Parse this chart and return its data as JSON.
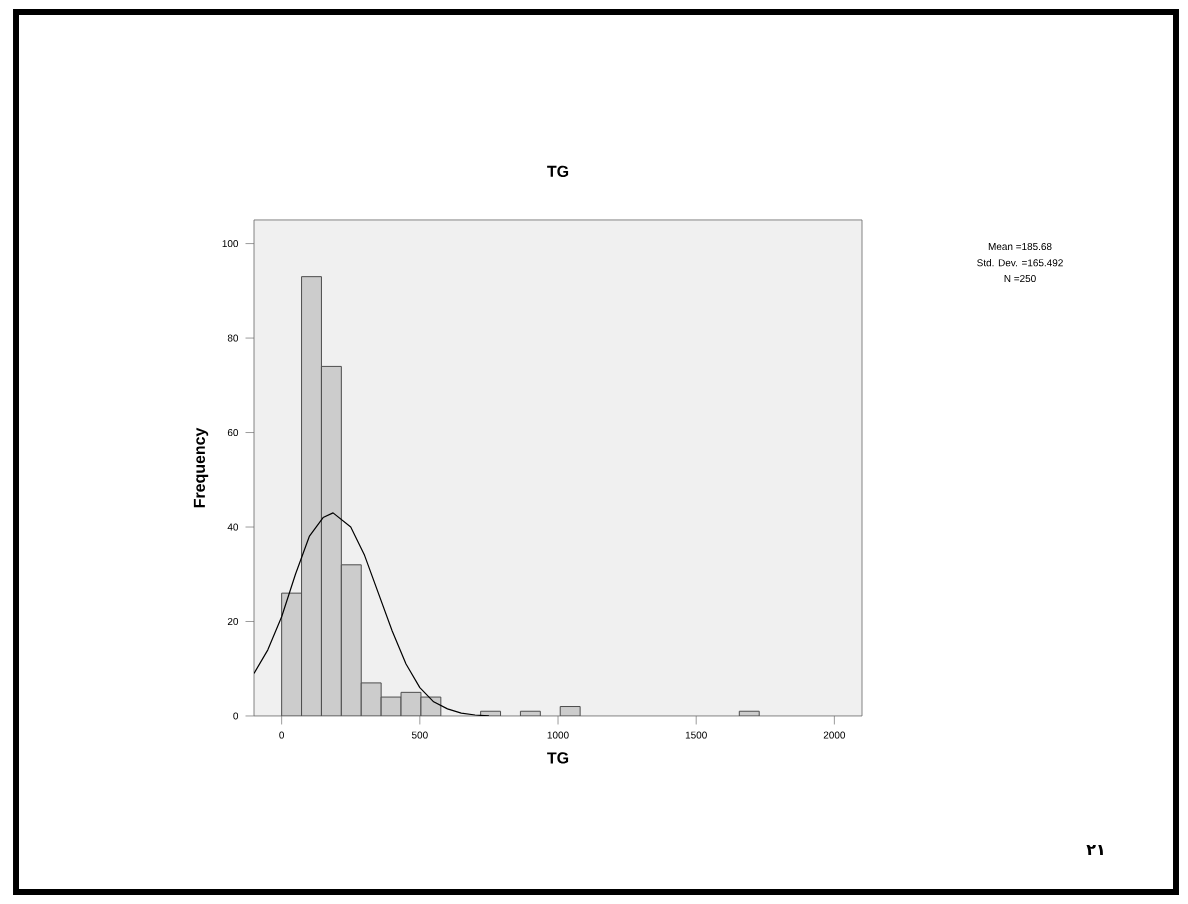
{
  "chart_data": {
    "type": "histogram",
    "title": "TG",
    "xlabel": "TG",
    "ylabel": "Frequency",
    "xlim": [
      -100,
      2100
    ],
    "ylim": [
      0,
      105
    ],
    "xticks": [
      0,
      500,
      1000,
      1500,
      2000
    ],
    "yticks": [
      0,
      20,
      40,
      60,
      80,
      100
    ],
    "marker": "none",
    "series": [
      {
        "color": "#cccccc",
        "bins": [
          0,
          72,
          144,
          216,
          288,
          360,
          432,
          504,
          576,
          648,
          720,
          792,
          864,
          936,
          1008,
          1080,
          1152,
          1224,
          1296,
          1368,
          1440,
          1512,
          1584,
          1656,
          1728
        ],
        "values": [
          26,
          93,
          74,
          32,
          7,
          4,
          5,
          4,
          0,
          0,
          1,
          0,
          1,
          0,
          2,
          0,
          0,
          0,
          0,
          0,
          0,
          0,
          0,
          1
        ]
      },
      {
        "type": "line",
        "color": "#000000",
        "x": [
          -100,
          -50,
          0,
          50,
          100,
          150,
          186,
          250,
          300,
          350,
          400,
          450,
          500,
          550,
          600,
          650,
          700,
          750
        ],
        "values": [
          9,
          14,
          21,
          30,
          38,
          42,
          43,
          40,
          34,
          26,
          18,
          11,
          6,
          3,
          1.5,
          0.6,
          0.2,
          0
        ]
      }
    ],
    "annotations": [
      "Mean =185.68",
      "Std. Dev. =165.492",
      "N =250",
      "٢١"
    ]
  }
}
